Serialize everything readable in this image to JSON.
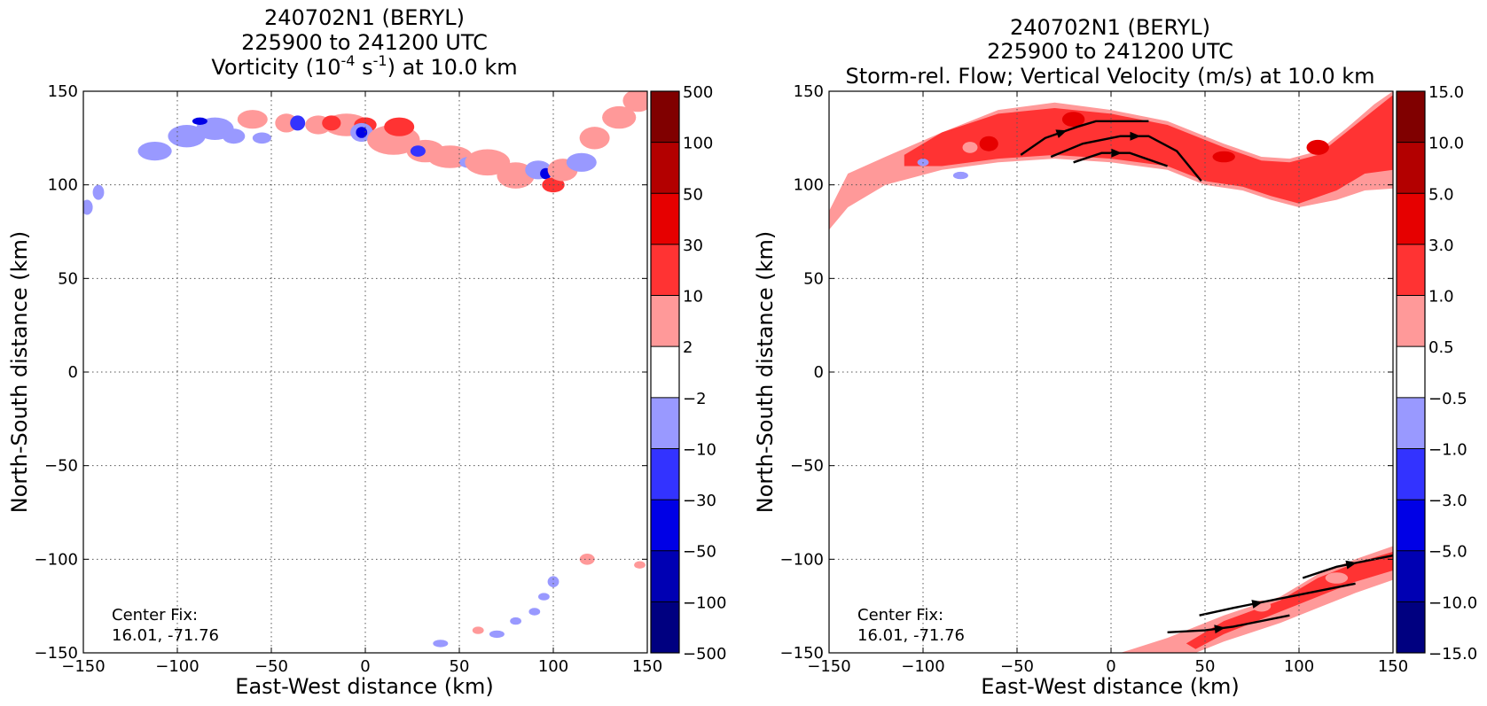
{
  "figure": {
    "panels": [
      {
        "title_lines": [
          "240702N1 (BERYL)",
          "225900 to 241200 UTC"
        ],
        "title_line3": {
          "pre": "Vorticity (10",
          "sup1": "-4",
          "mid": " s",
          "sup2": "-1",
          "post": ") at 10.0 km"
        },
        "xlabel": "East-West distance (km)",
        "ylabel": "North-South distance (km)",
        "note_lines": [
          "Center Fix:",
          "16.01, -71.76"
        ],
        "colorbar": {
          "labels": [
            "500",
            "100",
            "50",
            "30",
            "10",
            "2",
            "−2",
            "−10",
            "−30",
            "−50",
            "−100",
            "−500"
          ],
          "colors": [
            "#800000",
            "#b30000",
            "#e60000",
            "#ff3333",
            "#ff9999",
            "#ffffff",
            "#9999ff",
            "#3333ff",
            "#0000e6",
            "#0000b3",
            "#000080"
          ]
        }
      },
      {
        "title_lines": [
          "240702N1 (BERYL)",
          "225900 to 241200 UTC",
          "Storm-rel. Flow; Vertical Velocity (m/s) at 10.0 km"
        ],
        "xlabel": "East-West distance (km)",
        "ylabel": "North-South distance (km)",
        "note_lines": [
          "Center Fix:",
          "16.01, -71.76"
        ],
        "colorbar": {
          "labels": [
            "15.0",
            "10.0",
            "5.0",
            "3.0",
            "1.0",
            "0.5",
            "−0.5",
            "−1.0",
            "−3.0",
            "−5.0",
            "−10.0",
            "−15.0"
          ],
          "colors": [
            "#800000",
            "#b30000",
            "#e60000",
            "#ff3333",
            "#ff9999",
            "#ffffff",
            "#9999ff",
            "#3333ff",
            "#0000e6",
            "#0000b3",
            "#000080"
          ]
        }
      }
    ]
  },
  "chart_data": [
    {
      "type": "heatmap",
      "title": "240702N1 (BERYL) 225900 to 241200 UTC Vorticity (10^-4 s^-1) at 10.0 km",
      "xlabel": "East-West distance (km)",
      "ylabel": "North-South distance (km)",
      "xlim": [
        -150,
        150
      ],
      "ylim": [
        -150,
        150
      ],
      "xticks": [
        -150,
        -100,
        -50,
        0,
        50,
        100,
        150
      ],
      "yticks": [
        -150,
        -100,
        -50,
        0,
        50,
        100,
        150
      ],
      "xtick_labels": [
        "−150",
        "−100",
        "−50",
        "0",
        "50",
        "100",
        "150"
      ],
      "ytick_labels": [
        "−150",
        "−100",
        "−50",
        "0",
        "50",
        "100",
        "150"
      ],
      "grid": true,
      "levels": [
        -500,
        -100,
        -50,
        -30,
        -10,
        -2,
        2,
        10,
        30,
        50,
        100,
        500
      ],
      "blobs": [
        {
          "x": -148,
          "y": 88,
          "rx": 3,
          "ry": 4,
          "level": "pos1_neg"
        },
        {
          "x": -142,
          "y": 96,
          "rx": 3,
          "ry": 4,
          "level": "pos1_neg"
        },
        {
          "x": -112,
          "y": 118,
          "rx": 9,
          "ry": 5,
          "level": "pos1_neg"
        },
        {
          "x": -95,
          "y": 126,
          "rx": 10,
          "ry": 6,
          "level": "pos1_neg"
        },
        {
          "x": -80,
          "y": 130,
          "rx": 10,
          "ry": 6,
          "level": "pos1_neg"
        },
        {
          "x": -88,
          "y": 134,
          "rx": 4,
          "ry": 2,
          "level": "neg3"
        },
        {
          "x": -70,
          "y": 126,
          "rx": 6,
          "ry": 4,
          "level": "pos1_neg"
        },
        {
          "x": -55,
          "y": 125,
          "rx": 5,
          "ry": 3,
          "level": "pos1_neg"
        },
        {
          "x": -60,
          "y": 135,
          "rx": 8,
          "ry": 5,
          "level": "pos1"
        },
        {
          "x": -42,
          "y": 133,
          "rx": 6,
          "ry": 5,
          "level": "pos1"
        },
        {
          "x": -36,
          "y": 133,
          "rx": 4,
          "ry": 4,
          "level": "neg2"
        },
        {
          "x": -25,
          "y": 132,
          "rx": 7,
          "ry": 5,
          "level": "pos1"
        },
        {
          "x": -10,
          "y": 132,
          "rx": 12,
          "ry": 6,
          "level": "pos1"
        },
        {
          "x": -18,
          "y": 133,
          "rx": 5,
          "ry": 4,
          "level": "pos2"
        },
        {
          "x": 0,
          "y": 132,
          "rx": 6,
          "ry": 4,
          "level": "pos2"
        },
        {
          "x": -2,
          "y": 128,
          "rx": 6,
          "ry": 5,
          "level": "neg1"
        },
        {
          "x": -2,
          "y": 128,
          "rx": 3,
          "ry": 3,
          "level": "neg3"
        },
        {
          "x": 15,
          "y": 124,
          "rx": 14,
          "ry": 8,
          "level": "pos1"
        },
        {
          "x": 18,
          "y": 131,
          "rx": 8,
          "ry": 5,
          "level": "pos2"
        },
        {
          "x": 32,
          "y": 118,
          "rx": 10,
          "ry": 6,
          "level": "pos1"
        },
        {
          "x": 28,
          "y": 118,
          "rx": 4,
          "ry": 3,
          "level": "neg2"
        },
        {
          "x": 45,
          "y": 115,
          "rx": 12,
          "ry": 6,
          "level": "pos1"
        },
        {
          "x": 55,
          "y": 112,
          "rx": 5,
          "ry": 3,
          "level": "neg1"
        },
        {
          "x": 65,
          "y": 112,
          "rx": 12,
          "ry": 7,
          "level": "pos1"
        },
        {
          "x": 80,
          "y": 105,
          "rx": 10,
          "ry": 7,
          "level": "pos1"
        },
        {
          "x": 92,
          "y": 108,
          "rx": 7,
          "ry": 5,
          "level": "neg1"
        },
        {
          "x": 96,
          "y": 106,
          "rx": 3,
          "ry": 3,
          "level": "neg3"
        },
        {
          "x": 100,
          "y": 100,
          "rx": 6,
          "ry": 4,
          "level": "pos2"
        },
        {
          "x": 105,
          "y": 108,
          "rx": 8,
          "ry": 6,
          "level": "pos1"
        },
        {
          "x": 115,
          "y": 112,
          "rx": 8,
          "ry": 5,
          "level": "neg1"
        },
        {
          "x": 122,
          "y": 125,
          "rx": 8,
          "ry": 6,
          "level": "pos1"
        },
        {
          "x": 135,
          "y": 136,
          "rx": 9,
          "ry": 6,
          "level": "pos1"
        },
        {
          "x": 145,
          "y": 145,
          "rx": 8,
          "ry": 6,
          "level": "pos1"
        },
        {
          "x": 100,
          "y": -112,
          "rx": 3,
          "ry": 3,
          "level": "neg1"
        },
        {
          "x": 95,
          "y": -120,
          "rx": 3,
          "ry": 2,
          "level": "neg1"
        },
        {
          "x": 90,
          "y": -128,
          "rx": 3,
          "ry": 2,
          "level": "neg1"
        },
        {
          "x": 80,
          "y": -133,
          "rx": 3,
          "ry": 2,
          "level": "neg1"
        },
        {
          "x": 70,
          "y": -140,
          "rx": 4,
          "ry": 2,
          "level": "neg1"
        },
        {
          "x": 60,
          "y": -138,
          "rx": 3,
          "ry": 2,
          "level": "pos1"
        },
        {
          "x": 40,
          "y": -145,
          "rx": 4,
          "ry": 2,
          "level": "neg1"
        },
        {
          "x": 118,
          "y": -100,
          "rx": 4,
          "ry": 3,
          "level": "pos1"
        },
        {
          "x": 146,
          "y": -103,
          "rx": 3,
          "ry": 2,
          "level": "pos1"
        }
      ]
    },
    {
      "type": "heatmap",
      "title": "240702N1 (BERYL) 225900 to 241200 UTC Storm-rel. Flow; Vertical Velocity (m/s) at 10.0 km",
      "xlabel": "East-West distance (km)",
      "ylabel": "North-South distance (km)",
      "xlim": [
        -150,
        150
      ],
      "ylim": [
        -150,
        150
      ],
      "xticks": [
        -150,
        -100,
        -50,
        0,
        50,
        100,
        150
      ],
      "yticks": [
        -150,
        -100,
        -50,
        0,
        50,
        100,
        150
      ],
      "xtick_labels": [
        "−150",
        "−100",
        "−50",
        "0",
        "50",
        "100",
        "150"
      ],
      "ytick_labels": [
        "−150",
        "−100",
        "−50",
        "0",
        "50",
        "100",
        "150"
      ],
      "grid": true,
      "levels": [
        -15.0,
        -10.0,
        -5.0,
        -3.0,
        -1.0,
        -0.5,
        0.5,
        1.0,
        3.0,
        5.0,
        10.0,
        15.0
      ],
      "bands": [
        {
          "level": "pos1",
          "upper": [
            [
              -150,
              86
            ],
            [
              -140,
              106
            ],
            [
              -120,
              115
            ],
            [
              -90,
              128
            ],
            [
              -60,
              140
            ],
            [
              -30,
              144
            ],
            [
              0,
              140
            ],
            [
              30,
              134
            ],
            [
              60,
              122
            ],
            [
              80,
              115
            ],
            [
              95,
              114
            ],
            [
              110,
              118
            ],
            [
              125,
              130
            ],
            [
              140,
              143
            ],
            [
              150,
              150
            ]
          ],
          "lower": [
            [
              150,
              98
            ],
            [
              135,
              97
            ],
            [
              120,
              92
            ],
            [
              100,
              88
            ],
            [
              85,
              92
            ],
            [
              70,
              97
            ],
            [
              50,
              100
            ],
            [
              30,
              108
            ],
            [
              0,
              112
            ],
            [
              -30,
              114
            ],
            [
              -60,
              112
            ],
            [
              -90,
              108
            ],
            [
              -120,
              100
            ],
            [
              -140,
              88
            ],
            [
              -150,
              76
            ]
          ]
        },
        {
          "level": "pos2",
          "upper": [
            [
              -110,
              116
            ],
            [
              -90,
              128
            ],
            [
              -60,
              138
            ],
            [
              -30,
              141
            ],
            [
              0,
              138
            ],
            [
              30,
              132
            ],
            [
              60,
              120
            ],
            [
              80,
              113
            ],
            [
              95,
              112
            ],
            [
              110,
              116
            ],
            [
              125,
              128
            ],
            [
              140,
              140
            ],
            [
              150,
              148
            ]
          ],
          "lower": [
            [
              150,
              108
            ],
            [
              135,
              106
            ],
            [
              120,
              97
            ],
            [
              100,
              90
            ],
            [
              85,
              94
            ],
            [
              70,
              99
            ],
            [
              50,
              102
            ],
            [
              30,
              110
            ],
            [
              0,
              114
            ],
            [
              -30,
              116
            ],
            [
              -60,
              114
            ],
            [
              -90,
              110
            ],
            [
              -110,
              110
            ]
          ]
        },
        {
          "level": "pos1",
          "upper": [
            [
              5,
              -150
            ],
            [
              30,
              -142
            ],
            [
              60,
              -130
            ],
            [
              90,
              -120
            ],
            [
              110,
              -108
            ],
            [
              130,
              -100
            ],
            [
              150,
              -93
            ]
          ],
          "lower": [
            [
              150,
              -111
            ],
            [
              130,
              -118
            ],
            [
              110,
              -126
            ],
            [
              90,
              -134
            ],
            [
              60,
              -144
            ],
            [
              45,
              -150
            ]
          ]
        },
        {
          "level": "pos2",
          "upper": [
            [
              40,
              -145
            ],
            [
              60,
              -133
            ],
            [
              90,
              -122
            ],
            [
              110,
              -110
            ],
            [
              130,
              -102
            ],
            [
              150,
              -96
            ]
          ],
          "lower": [
            [
              150,
              -106
            ],
            [
              130,
              -112
            ],
            [
              110,
              -120
            ],
            [
              90,
              -128
            ],
            [
              60,
              -140
            ],
            [
              45,
              -148
            ]
          ]
        }
      ],
      "blobs": [
        {
          "x": -80,
          "y": 105,
          "rx": 4,
          "ry": 2,
          "level": "neg1"
        },
        {
          "x": -100,
          "y": 112,
          "rx": 3,
          "ry": 2,
          "level": "neg1"
        },
        {
          "x": -75,
          "y": 120,
          "rx": 4,
          "ry": 3,
          "level": "pos1"
        },
        {
          "x": -65,
          "y": 122,
          "rx": 5,
          "ry": 4,
          "level": "pos3"
        },
        {
          "x": -20,
          "y": 135,
          "rx": 6,
          "ry": 4,
          "level": "pos3"
        },
        {
          "x": 60,
          "y": 115,
          "rx": 6,
          "ry": 3,
          "level": "pos3"
        },
        {
          "x": 110,
          "y": 120,
          "rx": 6,
          "ry": 4,
          "level": "pos3"
        },
        {
          "x": 80,
          "y": -125,
          "rx": 5,
          "ry": 3,
          "level": "pos1"
        },
        {
          "x": 120,
          "y": -110,
          "rx": 6,
          "ry": 3,
          "level": "pos1"
        }
      ],
      "streamlines": [
        [
          [
            -48,
            116
          ],
          [
            -35,
            125
          ],
          [
            -18,
            131
          ],
          [
            -8,
            134
          ],
          [
            20,
            134
          ]
        ],
        [
          [
            -32,
            115
          ],
          [
            -15,
            122
          ],
          [
            5,
            126
          ],
          [
            20,
            126
          ],
          [
            35,
            118
          ],
          [
            48,
            102
          ]
        ],
        [
          [
            -20,
            112
          ],
          [
            -5,
            117
          ],
          [
            10,
            117
          ],
          [
            30,
            110
          ]
        ],
        [
          [
            30,
            -139
          ],
          [
            50,
            -138
          ],
          [
            65,
            -136
          ],
          [
            95,
            -130
          ]
        ],
        [
          [
            47,
            -130
          ],
          [
            65,
            -126
          ],
          [
            90,
            -121
          ],
          [
            130,
            -113
          ]
        ],
        [
          [
            102,
            -110
          ],
          [
            120,
            -104
          ],
          [
            135,
            -101
          ],
          [
            150,
            -98
          ]
        ]
      ]
    }
  ]
}
